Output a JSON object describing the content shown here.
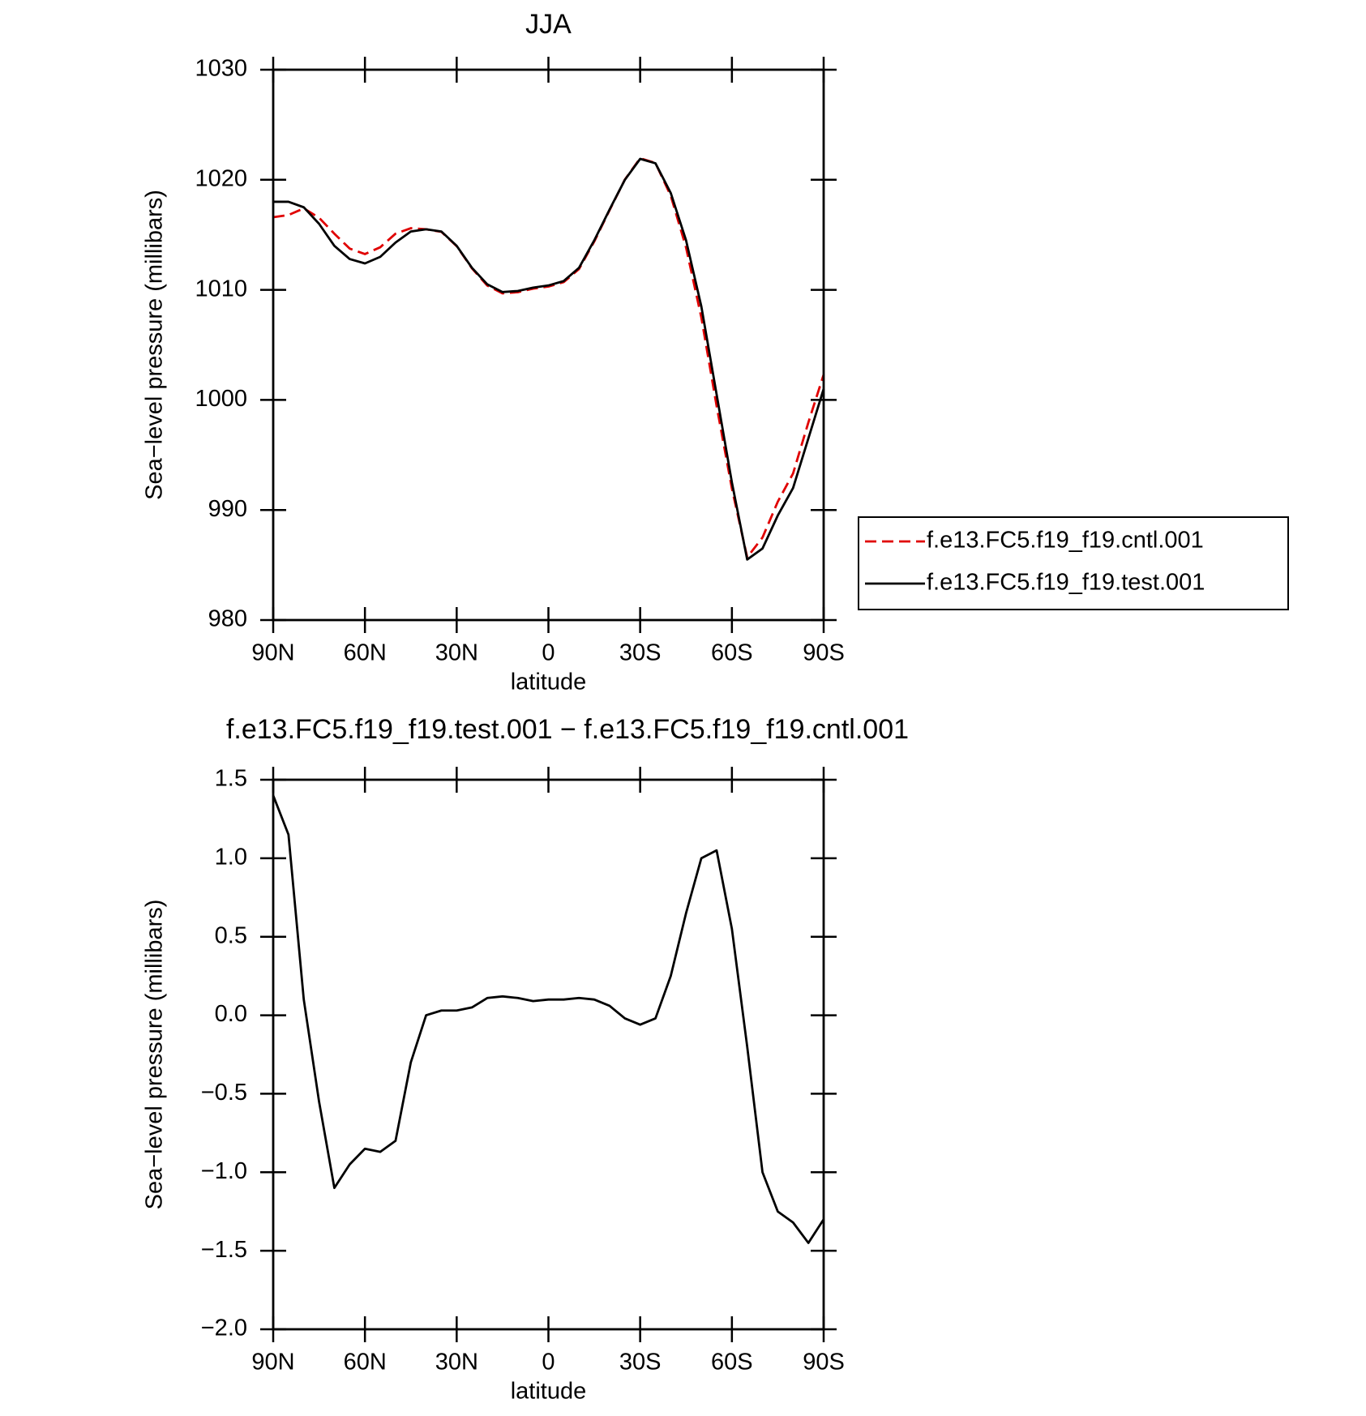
{
  "chart_data": [
    {
      "type": "line",
      "title": "JJA",
      "xlabel": "latitude",
      "ylabel": "Sea−level pressure (millibars)",
      "x": [
        90,
        85,
        80,
        75,
        70,
        65,
        60,
        55,
        50,
        45,
        40,
        35,
        30,
        25,
        20,
        15,
        10,
        5,
        0,
        -5,
        -10,
        -15,
        -20,
        -25,
        -30,
        -35,
        -40,
        -45,
        -50,
        -55,
        -60,
        -65,
        -70,
        -75,
        -80,
        -85,
        -90
      ],
      "xlim": [
        90,
        -90
      ],
      "xticks": [
        {
          "value": 90,
          "label": "90N"
        },
        {
          "value": 60,
          "label": "60N"
        },
        {
          "value": 30,
          "label": "30N"
        },
        0,
        {
          "value": -30,
          "label": "30S"
        },
        {
          "value": -60,
          "label": "60S"
        },
        {
          "value": -90,
          "label": "90S"
        }
      ],
      "ylim": [
        980,
        1030
      ],
      "yticks": [
        980,
        990,
        1000,
        1010,
        1020,
        1030
      ],
      "legend": "right",
      "series": [
        {
          "name": "f.e13.FC5.f19_f19.cntl.001",
          "color": "#e00000",
          "style": "dashed",
          "values": [
            1016.6,
            1016.8,
            1017.4,
            1016.55,
            1015.1,
            1013.75,
            1013.25,
            1013.87,
            1015.1,
            1015.6,
            1015.5,
            1015.27,
            1013.97,
            1011.95,
            1010.39,
            1009.68,
            1009.79,
            1010.11,
            1010.3,
            1010.7,
            1011.89,
            1014.4,
            1017.24,
            1020.02,
            1021.96,
            1021.52,
            1018.55,
            1013.85,
            1007.5,
            999.45,
            991.95,
            985.7,
            987.5,
            990.75,
            993.32,
            997.95,
            1002.3
          ]
        },
        {
          "name": "f.e13.FC5.f19_f19.test.001",
          "color": "#000000",
          "style": "solid",
          "values": [
            1018.0,
            1018.0,
            1017.5,
            1016.0,
            1014.0,
            1012.8,
            1012.4,
            1013.0,
            1014.3,
            1015.3,
            1015.5,
            1015.3,
            1014.0,
            1012.0,
            1010.5,
            1009.8,
            1009.9,
            1010.2,
            1010.4,
            1010.8,
            1012.0,
            1014.5,
            1017.3,
            1020.0,
            1021.9,
            1021.5,
            1018.8,
            1014.5,
            1008.5,
            1000.5,
            992.5,
            985.5,
            986.5,
            989.5,
            992.0,
            996.5,
            1001.0
          ]
        }
      ]
    },
    {
      "type": "line",
      "title": "f.e13.FC5.f19_f19.test.001 − f.e13.FC5.f19_f19.cntl.001",
      "xlabel": "latitude",
      "ylabel": "Sea−level pressure (millibars)",
      "x": [
        90,
        85,
        80,
        75,
        70,
        65,
        60,
        55,
        50,
        45,
        40,
        35,
        30,
        25,
        20,
        15,
        10,
        5,
        0,
        -5,
        -10,
        -15,
        -20,
        -25,
        -30,
        -35,
        -40,
        -45,
        -50,
        -55,
        -60,
        -65,
        -70,
        -75,
        -80,
        -85,
        -90
      ],
      "xlim": [
        90,
        -90
      ],
      "xticks": [
        {
          "value": 90,
          "label": "90N"
        },
        {
          "value": 60,
          "label": "60N"
        },
        {
          "value": 30,
          "label": "30N"
        },
        0,
        {
          "value": -30,
          "label": "30S"
        },
        {
          "value": -60,
          "label": "60S"
        },
        {
          "value": -90,
          "label": "90S"
        }
      ],
      "ylim": [
        -2,
        1.5
      ],
      "yticks": [
        {
          "value": -2,
          "label": "−2.0"
        },
        {
          "value": -1.5,
          "label": "−1.5"
        },
        {
          "value": -1,
          "label": "−1.0"
        },
        {
          "value": -0.5,
          "label": "−0.5"
        },
        {
          "value": 0,
          "label": "0.0"
        },
        0.5,
        {
          "value": 1,
          "label": "1.0"
        },
        1.5
      ],
      "series": [
        {
          "color": "#000000",
          "style": "solid",
          "values": [
            1.4,
            1.15,
            0.1,
            -0.55,
            -1.1,
            -0.95,
            -0.85,
            -0.87,
            -0.8,
            -0.3,
            0.0,
            0.03,
            0.03,
            0.05,
            0.11,
            0.12,
            0.11,
            0.09,
            0.1,
            0.1,
            0.11,
            0.1,
            0.06,
            -0.02,
            -0.06,
            -0.02,
            0.25,
            0.65,
            1.0,
            1.05,
            0.55,
            -0.2,
            -1.0,
            -1.25,
            -1.32,
            -1.45,
            -1.3
          ]
        }
      ]
    }
  ]
}
